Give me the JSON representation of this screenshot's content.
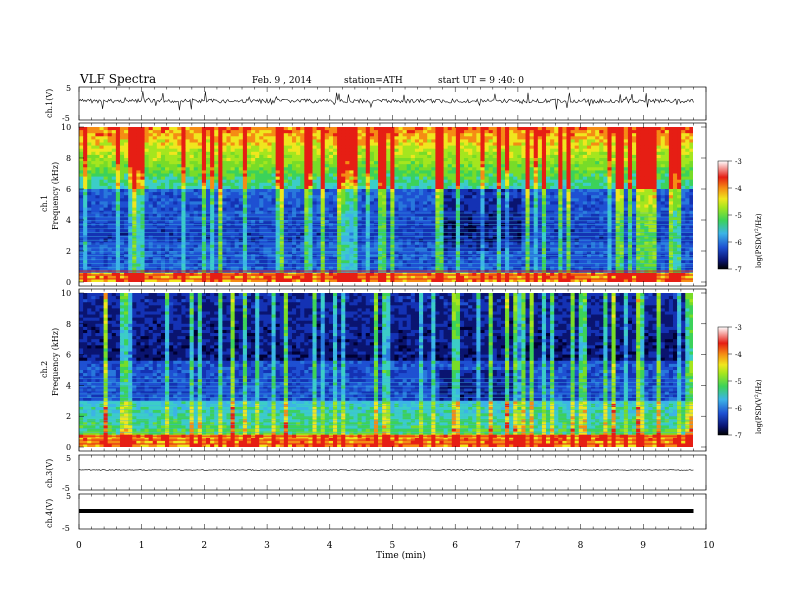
{
  "header": {
    "title": "VLF Spectra",
    "date": "Feb. 9 , 2014",
    "station": "station=ATH",
    "start": "start UT = 9 :40: 0"
  },
  "chart_data": [
    {
      "type": "line",
      "panel": "ch1-waveform",
      "ylabel": "ch.1(V)",
      "ylim": [
        -5,
        5
      ],
      "yticks": [
        "5",
        "-5"
      ],
      "description_level": -0.2,
      "color": "#000000"
    },
    {
      "type": "heatmap",
      "panel": "ch1-spectrogram",
      "ylabel": "ch.1 Frequency (kHz)",
      "ylim": [
        0,
        10
      ],
      "yticks": [
        "0",
        "2",
        "4",
        "6",
        "8",
        "10"
      ],
      "colorbar": {
        "label": "log(PSD(V²/Hz)",
        "range": [
          -7,
          -3
        ],
        "ticks": [
          "-3",
          "-4",
          "-5",
          "-6",
          "-7"
        ]
      }
    },
    {
      "type": "heatmap",
      "panel": "ch2-spectrogram",
      "ylabel": "ch.2 Frequency (kHz)",
      "ylim": [
        0,
        10
      ],
      "yticks": [
        "0",
        "2",
        "4",
        "6",
        "8",
        "10"
      ],
      "colorbar": {
        "label": "log(PSD(V²/Hz)",
        "range": [
          -7,
          -3
        ],
        "ticks": [
          "-3",
          "-4",
          "-5",
          "-6",
          "-7"
        ]
      }
    },
    {
      "type": "line",
      "panel": "ch3-waveform",
      "ylabel": "ch.3(V)",
      "ylim": [
        -5,
        5
      ],
      "yticks": [
        "5",
        "-5"
      ],
      "level": 0
    },
    {
      "type": "line",
      "panel": "ch4-waveform",
      "ylabel": "ch.4(V)",
      "ylim": [
        -5,
        5
      ],
      "yticks": [
        "5",
        "-5"
      ],
      "level": 0
    }
  ],
  "x_axis": {
    "label": "Time (min)",
    "xlim": [
      0,
      10
    ],
    "ticks": [
      "0",
      "1",
      "2",
      "3",
      "4",
      "5",
      "6",
      "7",
      "8",
      "9",
      "10"
    ],
    "data_end": 9.8
  }
}
